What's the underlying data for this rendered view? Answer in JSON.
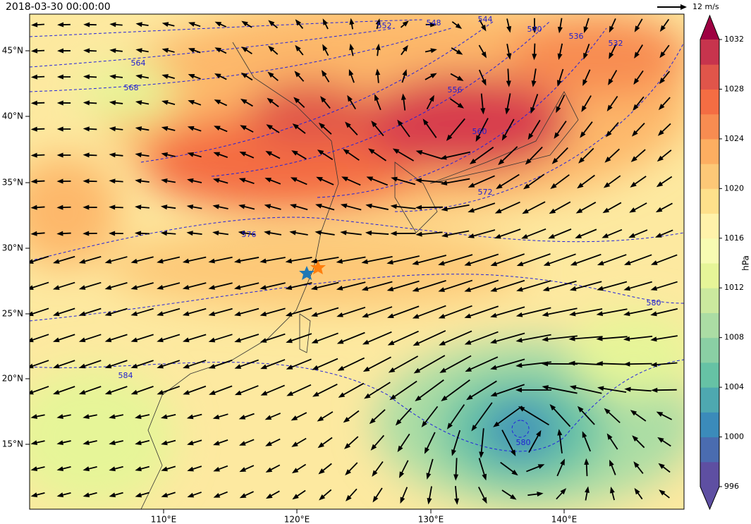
{
  "header": {
    "title": "2018-03-30 00:00:00",
    "reference_vector": "12 m/s"
  },
  "map": {
    "lat_labels": [
      "45°N",
      "40°N",
      "35°N",
      "30°N",
      "25°N",
      "20°N",
      "15°N"
    ],
    "lon_labels": [
      "110°E",
      "120°E",
      "130°E",
      "140°E"
    ],
    "contour_labels": [
      "564",
      "568",
      "552",
      "548",
      "544",
      "540",
      "536",
      "532",
      "556",
      "560",
      "572",
      "576",
      "580",
      "584",
      "580"
    ]
  },
  "colorbar": {
    "label": "hPa",
    "range": [
      996,
      1032
    ],
    "ticks": [
      996,
      1000,
      1004,
      1008,
      1012,
      1016,
      1020,
      1024,
      1028,
      1032
    ],
    "colors": [
      "#5e4fa2",
      "#4a6cb0",
      "#3b8bba",
      "#4ea8b0",
      "#66c2a5",
      "#8acfa4",
      "#abdda4",
      "#cbe99e",
      "#e6f598",
      "#f7fbb2",
      "#fff2aa",
      "#fee08b",
      "#fdc877",
      "#fdae61",
      "#f88c51",
      "#f46d43",
      "#e0554a",
      "#c7344d"
    ],
    "under_color": "#5e4fa2",
    "over_color": "#9e0142"
  }
}
